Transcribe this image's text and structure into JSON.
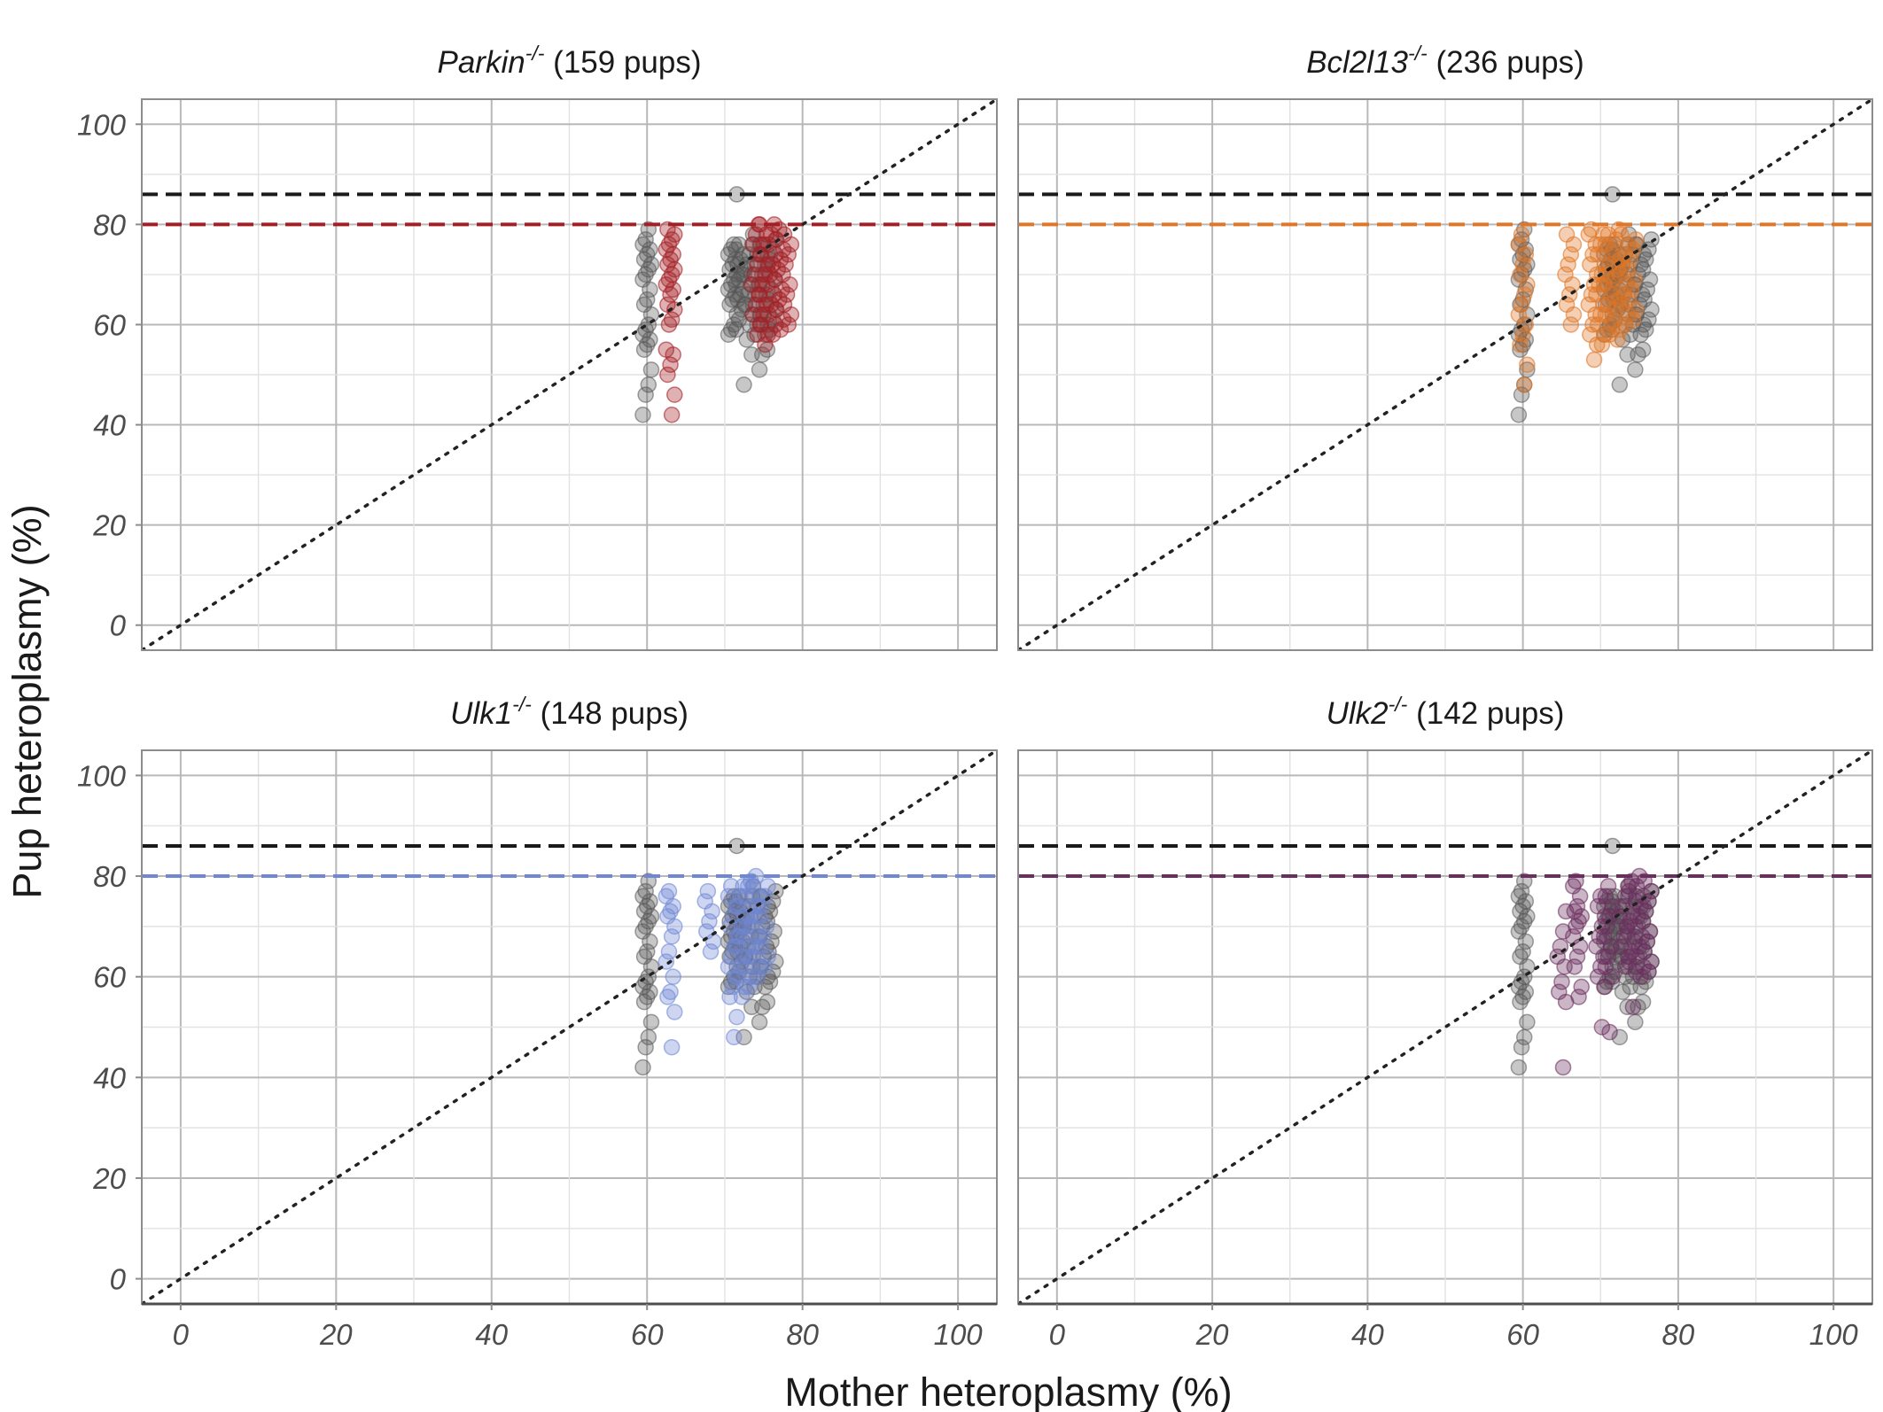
{
  "figure": {
    "xlabel": "Mother heteroplasmy (%)",
    "ylabel": "Pup heteroplasmy (%)"
  },
  "chart_data": {
    "type": "scatter",
    "xlim": [
      -5,
      105
    ],
    "ylim": [
      -5,
      105
    ],
    "x_ticks": [
      0,
      20,
      40,
      60,
      80,
      100
    ],
    "y_ticks": [
      0,
      20,
      40,
      60,
      80,
      100
    ],
    "grid": true,
    "reference_line": "y = x (dotted)",
    "wild_type_threshold": 86,
    "wild_type_color": "#555555",
    "panels": [
      {
        "gene": "Parkin",
        "genotype": "-/-",
        "count_label": "(159 pups)",
        "color": "#a31f24",
        "threshold": 80,
        "knockout": [
          {
            "x": 63,
            "y": [
              42,
              46,
              50,
              52,
              54,
              55,
              60,
              61,
              63,
              64,
              66,
              67,
              68,
              69,
              70,
              71,
              72,
              73,
              74,
              75,
              76,
              77,
              78,
              79
            ]
          },
          {
            "x": 74,
            "y": [
              58,
              60,
              62,
              64,
              66,
              68,
              70,
              72,
              74,
              76,
              78,
              80
            ]
          },
          {
            "x": 75,
            "y": [
              56,
              58,
              60,
              62,
              64,
              66,
              68,
              70,
              72,
              74,
              76,
              78,
              80
            ]
          },
          {
            "x": 76,
            "y": [
              58,
              60,
              62,
              64,
              66,
              68,
              70,
              72,
              74,
              76,
              78,
              80
            ]
          },
          {
            "x": 77,
            "y": [
              59,
              61,
              63,
              65,
              67,
              69,
              71,
              73,
              75,
              77,
              79
            ]
          },
          {
            "x": 78,
            "y": [
              60,
              62,
              64,
              66,
              68,
              70,
              72,
              74,
              76,
              78
            ]
          }
        ]
      },
      {
        "gene": "Bcl2l13",
        "genotype": "-/-",
        "count_label": "(236 pups)",
        "color": "#e07626",
        "threshold": 80,
        "knockout": [
          {
            "x": 60,
            "y": [
              48,
              52,
              56,
              58,
              60,
              62,
              64,
              66,
              68,
              70,
              72,
              74,
              76,
              78
            ]
          },
          {
            "x": 66,
            "y": [
              60,
              62,
              64,
              66,
              68,
              70,
              72,
              74,
              76,
              78
            ]
          },
          {
            "x": 69,
            "y": [
              53,
              56,
              58,
              60,
              62,
              64,
              66,
              68,
              70,
              72,
              74,
              76,
              78,
              79
            ]
          },
          {
            "x": 70,
            "y": [
              56,
              58,
              60,
              62,
              64,
              66,
              68,
              70,
              72,
              74,
              76,
              78
            ]
          },
          {
            "x": 71,
            "y": [
              58,
              60,
              62,
              64,
              66,
              68,
              70,
              72,
              74,
              76,
              78
            ]
          },
          {
            "x": 72,
            "y": [
              57,
              59,
              61,
              63,
              65,
              67,
              69,
              71,
              73,
              75,
              77,
              79
            ]
          },
          {
            "x": 73,
            "y": [
              60,
              62,
              64,
              66,
              68,
              70,
              72,
              74,
              76,
              78
            ]
          },
          {
            "x": 74,
            "y": [
              61,
              63,
              65,
              67,
              69,
              71,
              73,
              75,
              77
            ]
          }
        ]
      },
      {
        "gene": "Ulk1",
        "genotype": "-/-",
        "count_label": "(148 pups)",
        "color": "#7088d4",
        "threshold": 80,
        "knockout": [
          {
            "x": 63,
            "y": [
              46,
              53,
              56,
              57,
              60,
              63,
              65,
              68,
              70,
              72,
              73,
              74,
              76,
              77
            ]
          },
          {
            "x": 68,
            "y": [
              65,
              67,
              69,
              71,
              73,
              75,
              77
            ]
          },
          {
            "x": 71,
            "y": [
              48,
              52,
              56,
              58,
              60,
              62,
              64,
              66,
              68,
              70,
              72,
              74,
              76,
              78
            ]
          },
          {
            "x": 72,
            "y": [
              56,
              58,
              60,
              62,
              64,
              66,
              68,
              70,
              72,
              74,
              76,
              78
            ]
          },
          {
            "x": 73,
            "y": [
              58,
              60,
              62,
              64,
              66,
              68,
              70,
              72,
              74,
              76,
              78,
              79
            ]
          },
          {
            "x": 74,
            "y": [
              60,
              62,
              64,
              66,
              68,
              70,
              72,
              74,
              76,
              78,
              80
            ]
          },
          {
            "x": 75,
            "y": [
              62,
              64,
              66,
              68,
              70,
              72,
              74,
              76,
              78
            ]
          }
        ]
      },
      {
        "gene": "Ulk2",
        "genotype": "-/-",
        "count_label": "(142 pups)",
        "color": "#6a2f5e",
        "threshold": 80,
        "knockout": [
          {
            "x": 65,
            "y": [
              42,
              55,
              57,
              59,
              62,
              64,
              66,
              69,
              73
            ]
          },
          {
            "x": 67,
            "y": [
              56,
              58,
              62,
              64,
              66,
              68,
              70,
              71,
              72,
              73,
              74,
              76,
              78,
              79
            ]
          },
          {
            "x": 70,
            "y": [
              50,
              58,
              60,
              62,
              64,
              66,
              68,
              70,
              72,
              74,
              76
            ]
          },
          {
            "x": 71,
            "y": [
              49,
              60,
              62,
              64,
              66,
              68,
              70,
              72,
              74,
              76,
              78
            ]
          },
          {
            "x": 73,
            "y": [
              62,
              64,
              66,
              68,
              70,
              72,
              74,
              76,
              78
            ]
          },
          {
            "x": 74,
            "y": [
              54,
              61,
              63,
              65,
              67,
              69,
              71,
              73,
              75,
              77,
              79
            ]
          },
          {
            "x": 75,
            "y": [
              60,
              62,
              64,
              66,
              68,
              70,
              72,
              74,
              76,
              78,
              80
            ]
          },
          {
            "x": 76,
            "y": [
              61,
              63,
              65,
              67,
              69,
              71,
              73,
              75,
              77,
              79
            ]
          }
        ]
      }
    ],
    "wild_type": [
      {
        "x": 60,
        "y": [
          42,
          46,
          48,
          51,
          55,
          56,
          57,
          58,
          59,
          60,
          62,
          64,
          65,
          67,
          69,
          70,
          71,
          72,
          73,
          74,
          75,
          76,
          77,
          79
        ]
      },
      {
        "x": 71,
        "y": [
          58,
          59,
          60,
          62,
          64,
          65,
          66,
          67,
          68,
          69,
          70,
          71,
          72,
          73,
          74,
          75,
          76,
          86
        ]
      },
      {
        "x": 72,
        "y": [
          59,
          61,
          63,
          64,
          65,
          66,
          67,
          68,
          69,
          70,
          71,
          72,
          73,
          74,
          75,
          76
        ]
      },
      {
        "x": 73,
        "y": [
          48,
          57,
          60,
          62,
          64,
          66,
          68,
          70,
          72,
          74,
          76
        ]
      },
      {
        "x": 74,
        "y": [
          54,
          58,
          60,
          62,
          64,
          66,
          68,
          70,
          72,
          74,
          76,
          78
        ]
      },
      {
        "x": 75,
        "y": [
          51,
          54,
          58,
          60,
          62,
          64,
          66,
          68,
          70,
          72,
          74,
          76
        ]
      },
      {
        "x": 76,
        "y": [
          55,
          59,
          61,
          63,
          65,
          67,
          69,
          71,
          73,
          75,
          77
        ]
      }
    ]
  }
}
